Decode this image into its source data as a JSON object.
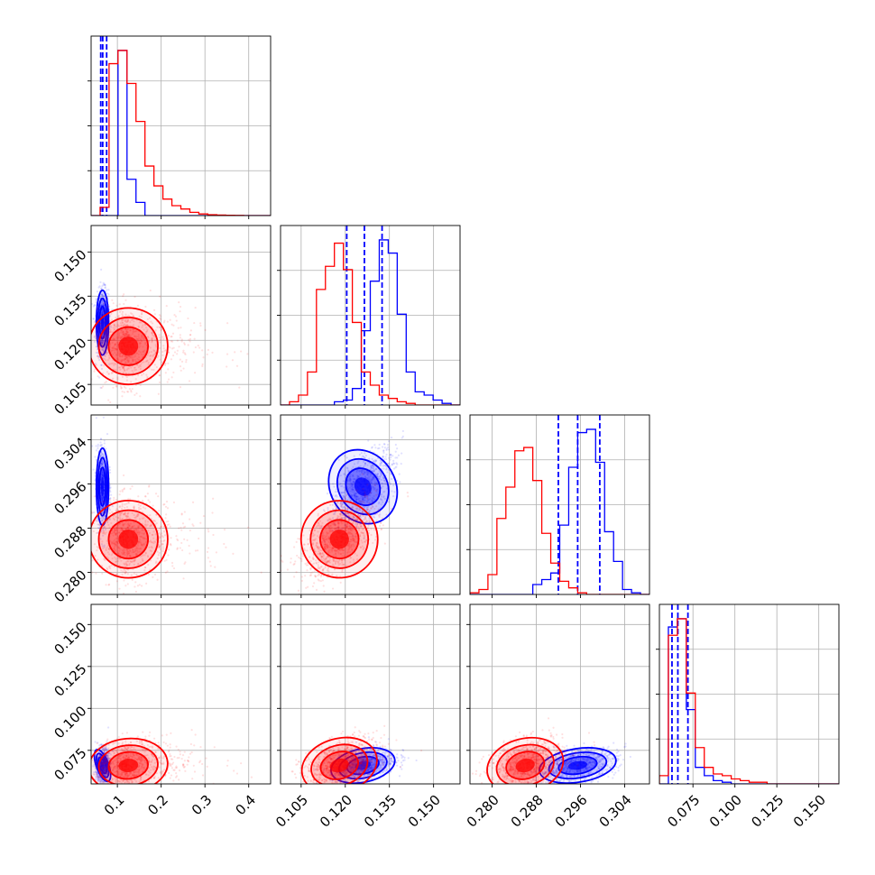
{
  "colors": {
    "red": "#ff0000",
    "blue": "#0000ff",
    "grid": "#b0b0b0",
    "frame": "#000000"
  },
  "chart_data": {
    "type": "corner",
    "title": "",
    "parameters": [
      {
        "label": "",
        "range": [
          0.04,
          0.45
        ],
        "ticks": [
          0.1,
          0.2,
          0.3,
          0.4
        ],
        "tick_labels": [
          "0.1",
          "0.2",
          "0.3",
          "0.4"
        ]
      },
      {
        "label": "",
        "range": [
          0.098,
          0.159
        ],
        "ticks": [
          0.105,
          0.12,
          0.135,
          0.15
        ],
        "tick_labels": [
          "0.105",
          "0.120",
          "0.135",
          "0.150"
        ]
      },
      {
        "label": "",
        "range": [
          0.276,
          0.3085
        ],
        "ticks": [
          0.28,
          0.288,
          0.296,
          0.304
        ],
        "tick_labels": [
          "0.280",
          "0.288",
          "0.296",
          "0.304"
        ]
      },
      {
        "label": "",
        "range": [
          0.055,
          0.162
        ],
        "ticks": [
          0.075,
          0.1,
          0.125,
          0.15
        ],
        "tick_labels": [
          "0.075",
          "0.100",
          "0.125",
          "0.150"
        ]
      }
    ],
    "series": [
      {
        "color": "#0000ff",
        "mean": [
          0.066,
          0.126,
          0.2955,
          0.066
        ],
        "std": [
          0.007,
          0.0055,
          0.0035,
          0.005
        ],
        "quantiles": [
          [
            0.062,
            0.0665,
            0.0755
          ],
          [
            0.1205,
            0.1265,
            0.1325
          ],
          [
            0.292,
            0.2955,
            0.2995
          ],
          [
            0.0625,
            0.066,
            0.072
          ]
        ],
        "histograms": [
          [
            0,
            0,
            0,
            1.0,
            0.22,
            0.08,
            0,
            0,
            0,
            0,
            0,
            0,
            0,
            0,
            0,
            0,
            0,
            0,
            0,
            0
          ],
          [
            0,
            0,
            0,
            0,
            0,
            0,
            0.02,
            0.03,
            0.1,
            0.45,
            0.75,
            1.0,
            0.92,
            0.55,
            0.2,
            0.08,
            0.06,
            0.03,
            0.01,
            0
          ],
          [
            0,
            0,
            0,
            0,
            0,
            0,
            0,
            0.06,
            0.09,
            0.13,
            0.42,
            0.77,
            0.98,
            1.0,
            0.8,
            0.38,
            0.2,
            0.03,
            0.01,
            0
          ],
          [
            0,
            0.95,
            1.0,
            0.45,
            0.1,
            0.05,
            0.02,
            0.01,
            0,
            0,
            0,
            0,
            0,
            0,
            0,
            0,
            0,
            0,
            0,
            0
          ]
        ]
      },
      {
        "color": "#ff0000",
        "mean": [
          0.125,
          0.118,
          0.286,
          0.066
        ],
        "std": [
          0.045,
          0.0065,
          0.0035,
          0.008
        ],
        "quantiles": [],
        "histograms": [
          [
            0,
            0.05,
            0.92,
            1.0,
            0.8,
            0.57,
            0.3,
            0.18,
            0.1,
            0.06,
            0.04,
            0.02,
            0.01,
            0.005,
            0.003,
            0.002,
            0.001,
            0,
            0,
            0
          ],
          [
            0,
            0.02,
            0.06,
            0.2,
            0.7,
            0.84,
            0.98,
            0.82,
            0.5,
            0.2,
            0.12,
            0.06,
            0.04,
            0.02,
            0.01,
            0,
            0,
            0,
            0,
            0
          ],
          [
            0.01,
            0.03,
            0.12,
            0.46,
            0.65,
            0.87,
            0.89,
            0.69,
            0.37,
            0.19,
            0.08,
            0.04,
            0.01,
            0,
            0,
            0,
            0,
            0,
            0,
            0
          ],
          [
            0.05,
            0.9,
            1.0,
            0.55,
            0.22,
            0.1,
            0.06,
            0.05,
            0.03,
            0.02,
            0.01,
            0.01,
            0,
            0,
            0,
            0,
            0,
            0,
            0,
            0
          ]
        ]
      }
    ],
    "grid": true,
    "legend": "none"
  }
}
